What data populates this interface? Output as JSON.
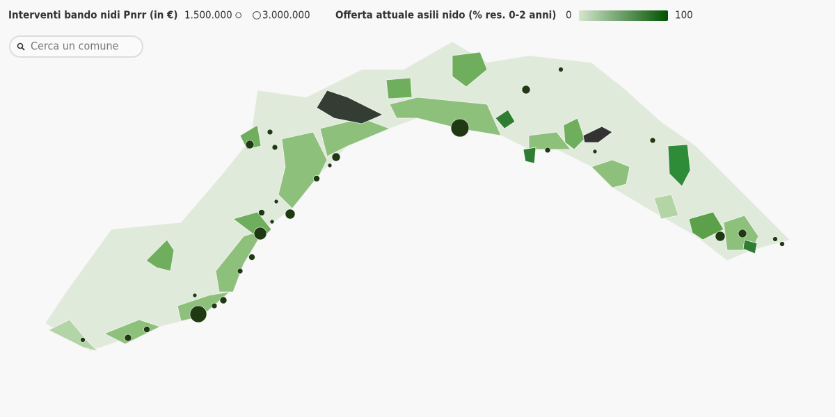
{
  "legend_size": {
    "title": "Interventi bando nidi Pnrr (in €)",
    "items": [
      {
        "value": 1500000,
        "label": "1.500.000"
      },
      {
        "value": 3000000,
        "label": "3.000.000"
      }
    ]
  },
  "legend_color": {
    "title": "Offerta attuale asili nido (% res. 0-2 anni)",
    "min": 0,
    "max": 100,
    "colors": [
      "#d4e6cc",
      "#005200"
    ]
  },
  "search": {
    "placeholder": "Cerca un comune"
  },
  "interventi": [
    14000000,
    12000000,
    6800000,
    4100000,
    4100000,
    3000000,
    3000000,
    3000000,
    3000000,
    2100000,
    1700000,
    2100000,
    1300000,
    1700000,
    1300000,
    1700000,
    1700000,
    1300000,
    1300000,
    1300000,
    1300000,
    1000000,
    1000000,
    1000000,
    1000000,
    750000,
    750000,
    750000,
    750000,
    750000
  ]
}
